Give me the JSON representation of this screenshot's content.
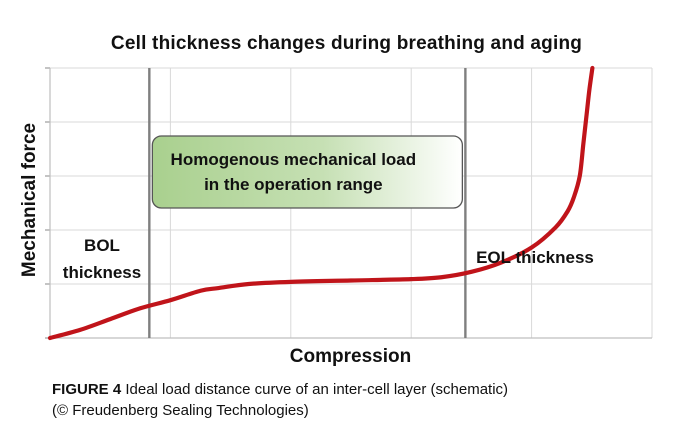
{
  "chart_data": {
    "type": "line",
    "title": "Cell thickness changes during breathing and aging",
    "xlabel": "Compression",
    "ylabel": "Mechanical force",
    "grid": true,
    "schematic": true,
    "x_range": [
      0,
      100
    ],
    "y_range": [
      0,
      100
    ],
    "series": [
      {
        "color": "#c0141a",
        "points": [
          [
            0,
            0
          ],
          [
            5,
            3
          ],
          [
            10,
            7
          ],
          [
            15,
            11
          ],
          [
            20,
            14
          ],
          [
            25,
            17.5
          ],
          [
            28,
            18.5
          ],
          [
            33,
            20
          ],
          [
            40,
            20.8
          ],
          [
            50,
            21.3
          ],
          [
            60,
            21.8
          ],
          [
            65,
            22.5
          ],
          [
            70,
            24.5
          ],
          [
            75,
            28
          ],
          [
            80,
            33.5
          ],
          [
            84,
            41
          ],
          [
            86,
            47
          ],
          [
            87,
            52
          ],
          [
            88,
            60
          ],
          [
            88.6,
            72
          ],
          [
            89.2,
            84
          ],
          [
            89.6,
            92
          ],
          [
            90.1,
            100
          ]
        ]
      }
    ],
    "vertical_markers": [
      {
        "x": 16.5,
        "label_lines": [
          "BOL",
          "thickness"
        ]
      },
      {
        "x": 69,
        "label_lines": [
          "EOL thickness"
        ]
      }
    ],
    "band": {
      "x_start": 17,
      "x_end": 68.5,
      "label_lines": [
        "Homogenous mechanical load",
        "in the operation range"
      ]
    }
  },
  "caption": {
    "figure": "FIGURE 4",
    "line1": "Ideal load distance curve of an inter-cell layer (schematic)",
    "line2": "(© Freudenberg Sealing Technologies)"
  },
  "colors": {
    "curve": "#c0141a",
    "band_start": "#a9d08e",
    "band_end": "#ffffff",
    "markers": "#7f7f7f",
    "grid": "#d9d9d9"
  }
}
